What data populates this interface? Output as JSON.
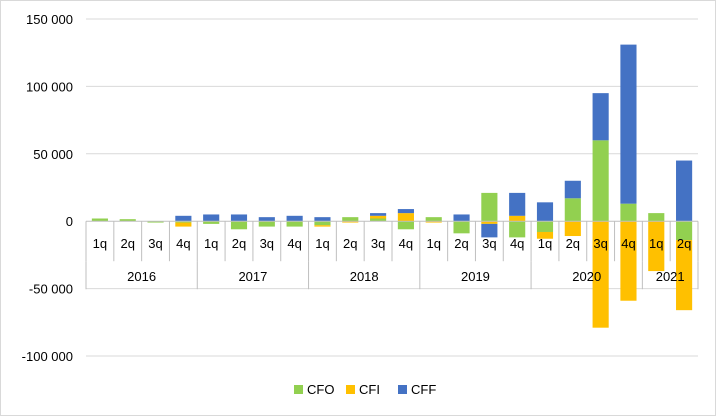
{
  "chart_data": {
    "type": "bar",
    "stacked": true,
    "title": "",
    "xlabel": "",
    "ylabel": "",
    "ylim": [
      -100000,
      150000
    ],
    "y_ticks": [
      -100000,
      -50000,
      0,
      50000,
      100000,
      150000
    ],
    "y_tick_labels": [
      "-100 000",
      "-50 000",
      "0",
      "50 000",
      "100 000",
      "150 000"
    ],
    "grid": true,
    "legend_position": "bottom",
    "categories": [
      "1q",
      "2q",
      "3q",
      "4q",
      "1q",
      "2q",
      "3q",
      "4q",
      "1q",
      "2q",
      "3q",
      "4q",
      "1q",
      "2q",
      "3q",
      "4q",
      "1q",
      "2q",
      "3q",
      "4q",
      "1q",
      "2q"
    ],
    "groups": [
      {
        "label": "2016",
        "count": 4
      },
      {
        "label": "2017",
        "count": 4
      },
      {
        "label": "2018",
        "count": 4
      },
      {
        "label": "2019",
        "count": 4
      },
      {
        "label": "2020",
        "count": 4
      },
      {
        "label": "2021",
        "count": 2
      }
    ],
    "series": [
      {
        "name": "CFO",
        "color": "#92D050",
        "values": [
          2000,
          1500,
          -1000,
          -1000,
          -2000,
          -6000,
          -4000,
          -4000,
          -3000,
          3000,
          2000,
          -6000,
          3000,
          -9000,
          21000,
          -12000,
          -8000,
          17000,
          60000,
          13000,
          6000,
          -14000
        ]
      },
      {
        "name": "CFI",
        "color": "#FFC000",
        "values": [
          0,
          0,
          0,
          -3000,
          0,
          0,
          0,
          0,
          -1000,
          -1000,
          2000,
          6000,
          -1000,
          0,
          -2000,
          4000,
          -5000,
          -11000,
          -79000,
          -59000,
          -37000,
          -52000
        ]
      },
      {
        "name": "CFF",
        "color": "#4472C4",
        "values": [
          0,
          0,
          0,
          4000,
          5000,
          5000,
          3000,
          4000,
          3000,
          0,
          2000,
          3000,
          0,
          5000,
          -10000,
          17000,
          14000,
          13000,
          35000,
          118000,
          0,
          45000
        ]
      }
    ]
  }
}
